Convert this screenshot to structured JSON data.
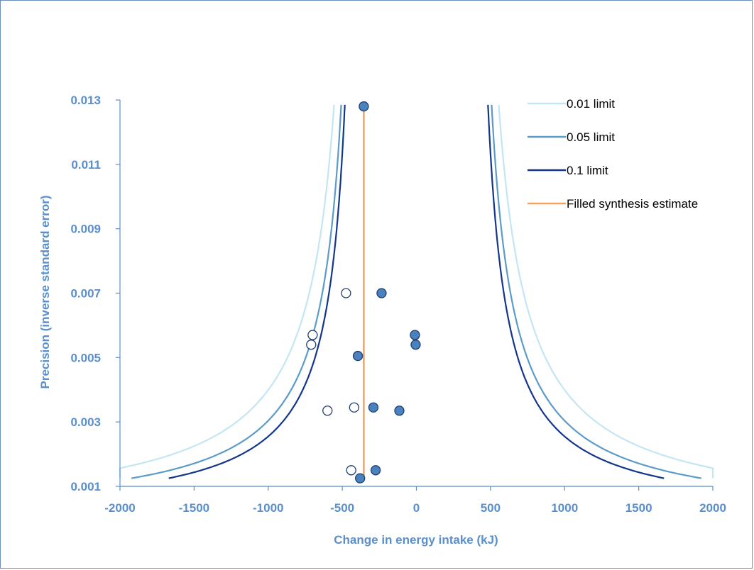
{
  "chart_data": {
    "type": "scatter",
    "title": "",
    "xlabel": "Change in energy intake (kJ)",
    "ylabel": "Precision (inverse standard error)",
    "xlim": [
      -2000,
      2000
    ],
    "ylim": [
      0.001,
      0.013
    ],
    "x_ticks": [
      "-2000",
      "-1500",
      "-1000",
      "-500",
      "0",
      "500",
      "1000",
      "1500",
      "2000"
    ],
    "y_ticks": [
      "0.013",
      "0.011",
      "0.009",
      "0.007",
      "0.005",
      "0.003",
      "0.001"
    ],
    "grid": false,
    "legend_position": "top-right",
    "synthesis_estimate": -355,
    "limits": [
      {
        "name": "0.01 limit",
        "z": 2.576,
        "color": "#c3e6f4"
      },
      {
        "name": "0.05 limit",
        "z": 1.96,
        "color": "#5b9bc8"
      },
      {
        "name": "0.1 limit",
        "z": 1.645,
        "color": "#14368a"
      }
    ],
    "synthesis_line": {
      "name": "Filled synthesis estimate",
      "color": "#f5a25d",
      "x": -355,
      "y_range": [
        0.00125,
        0.0128
      ]
    },
    "observed_points": [
      {
        "x": -355,
        "y": 0.0128
      },
      {
        "x": -235,
        "y": 0.007
      },
      {
        "x": -10,
        "y": 0.0057
      },
      {
        "x": -5,
        "y": 0.0054
      },
      {
        "x": -395,
        "y": 0.00505
      },
      {
        "x": -290,
        "y": 0.00345
      },
      {
        "x": -115,
        "y": 0.00335
      },
      {
        "x": -275,
        "y": 0.0015
      },
      {
        "x": -380,
        "y": 0.00125
      }
    ],
    "filled_points": [
      {
        "x": -475,
        "y": 0.007
      },
      {
        "x": -700,
        "y": 0.0057
      },
      {
        "x": -710,
        "y": 0.0054
      },
      {
        "x": -600,
        "y": 0.00335
      },
      {
        "x": -420,
        "y": 0.00345
      },
      {
        "x": -440,
        "y": 0.0015
      }
    ],
    "colors": {
      "axis": "#5b8fcb",
      "text": "#5b8fcb",
      "observed_fill": "#4a82c0",
      "observed_stroke": "#1f3e6e",
      "filled_fill": "#ffffff",
      "filled_stroke": "#1f3e6e"
    }
  }
}
